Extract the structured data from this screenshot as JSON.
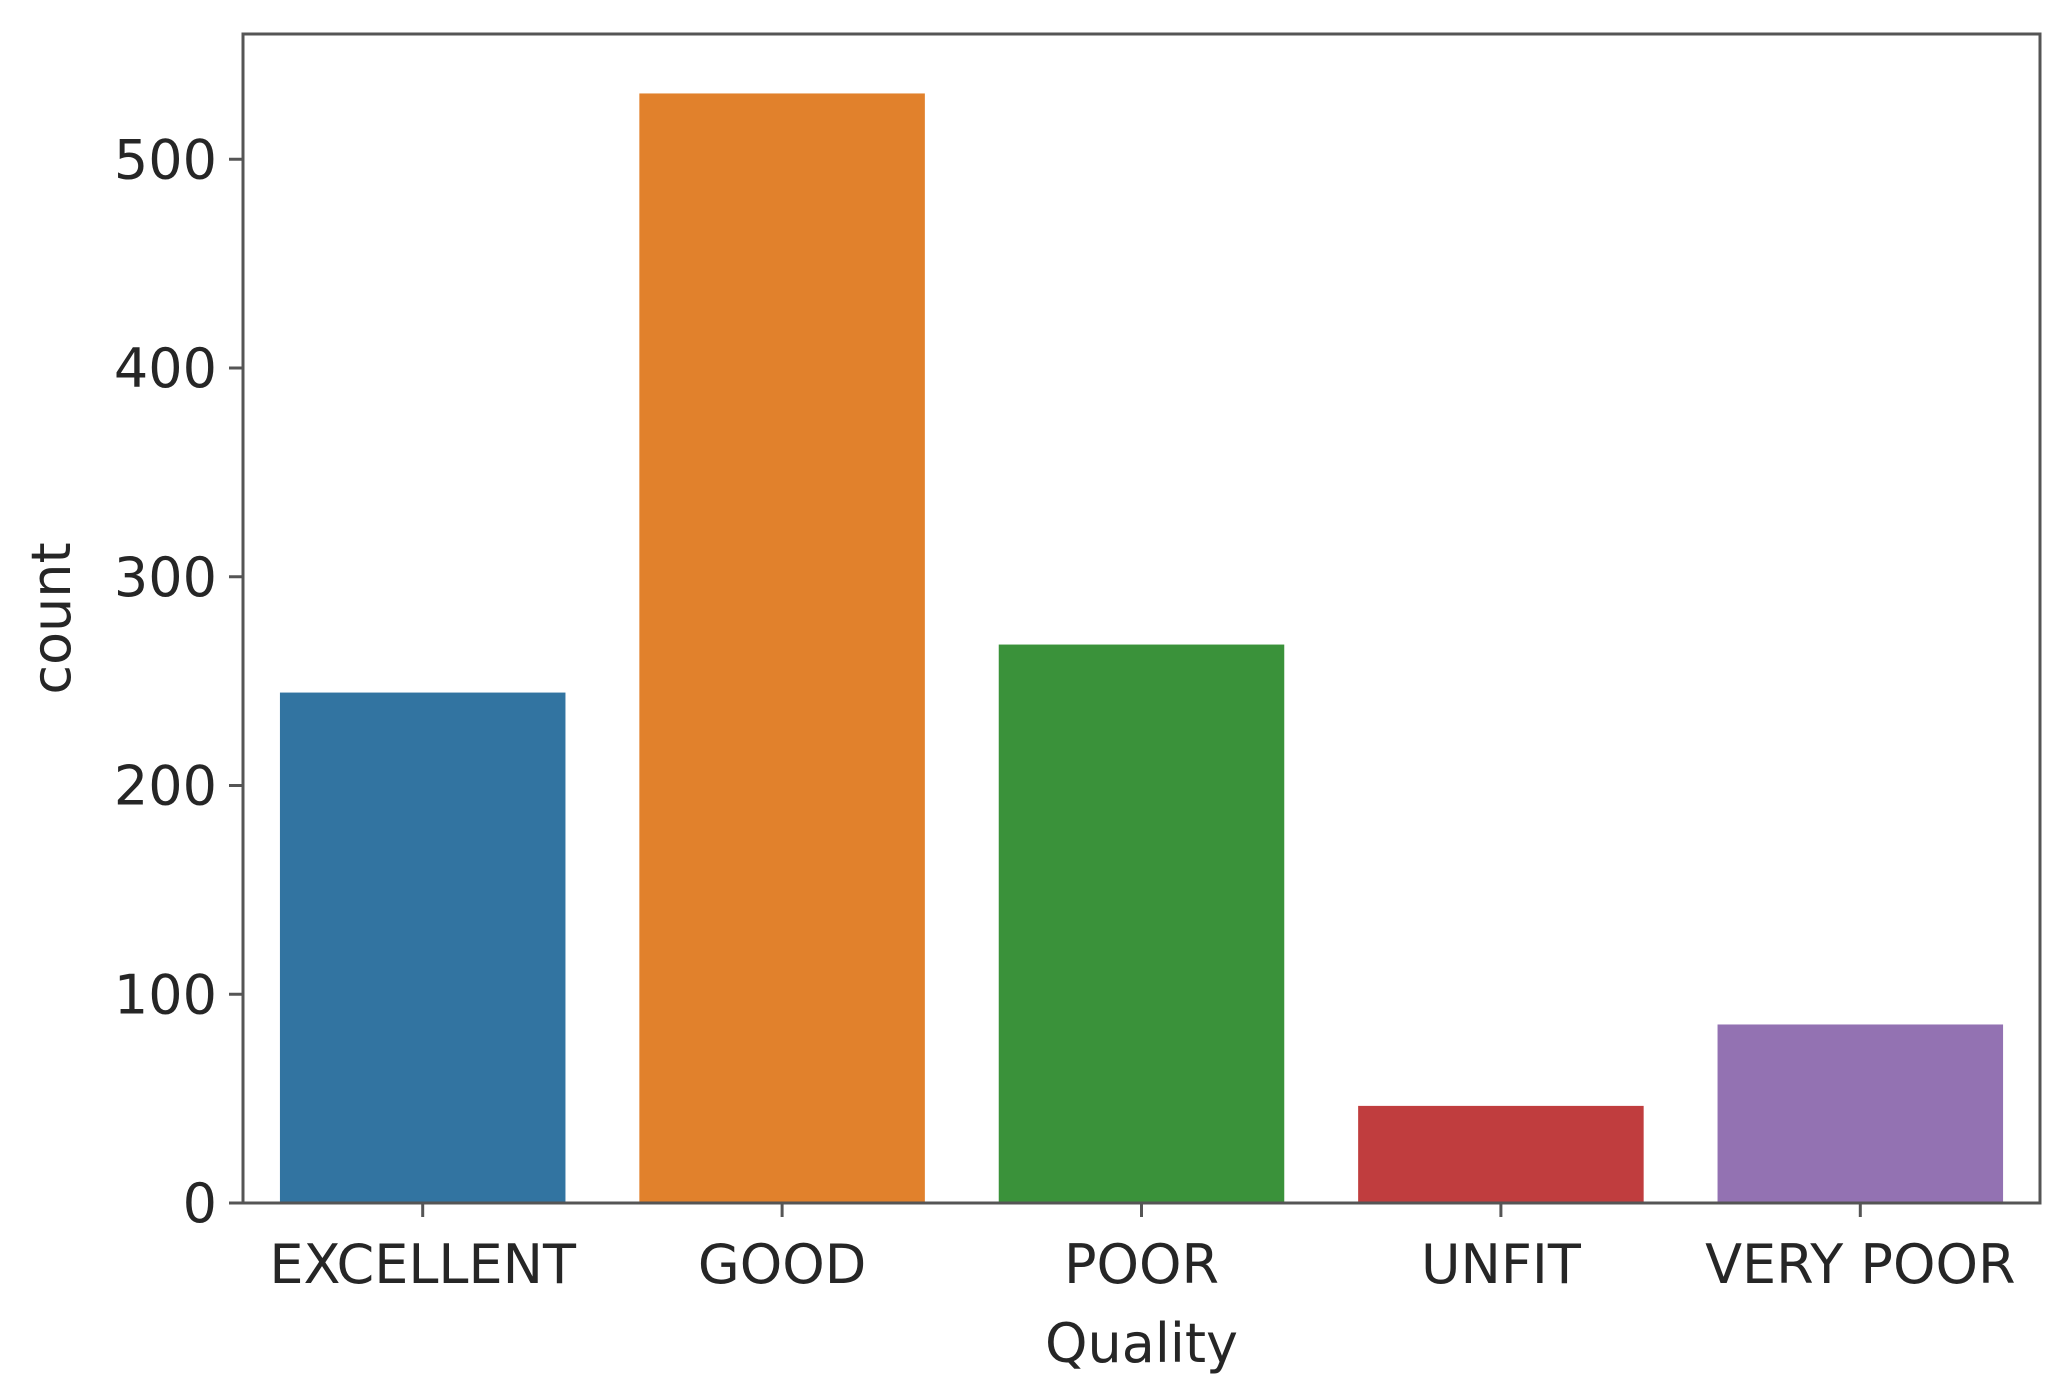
{
  "chart_data": {
    "type": "bar",
    "categories": [
      "EXCELLENT",
      "GOOD",
      "POOR",
      "UNFIT",
      "VERY POOR"
    ],
    "values": [
      245,
      532,
      268,
      47,
      86
    ],
    "colors": [
      "#3274a1",
      "#e1812c",
      "#3a923a",
      "#c03d3e",
      "#9372b2"
    ],
    "xlabel": "Quality",
    "ylabel": "count",
    "ylim": [
      0,
      560
    ],
    "yticks": [
      0,
      100,
      200,
      300,
      400,
      500
    ],
    "grid": false
  }
}
